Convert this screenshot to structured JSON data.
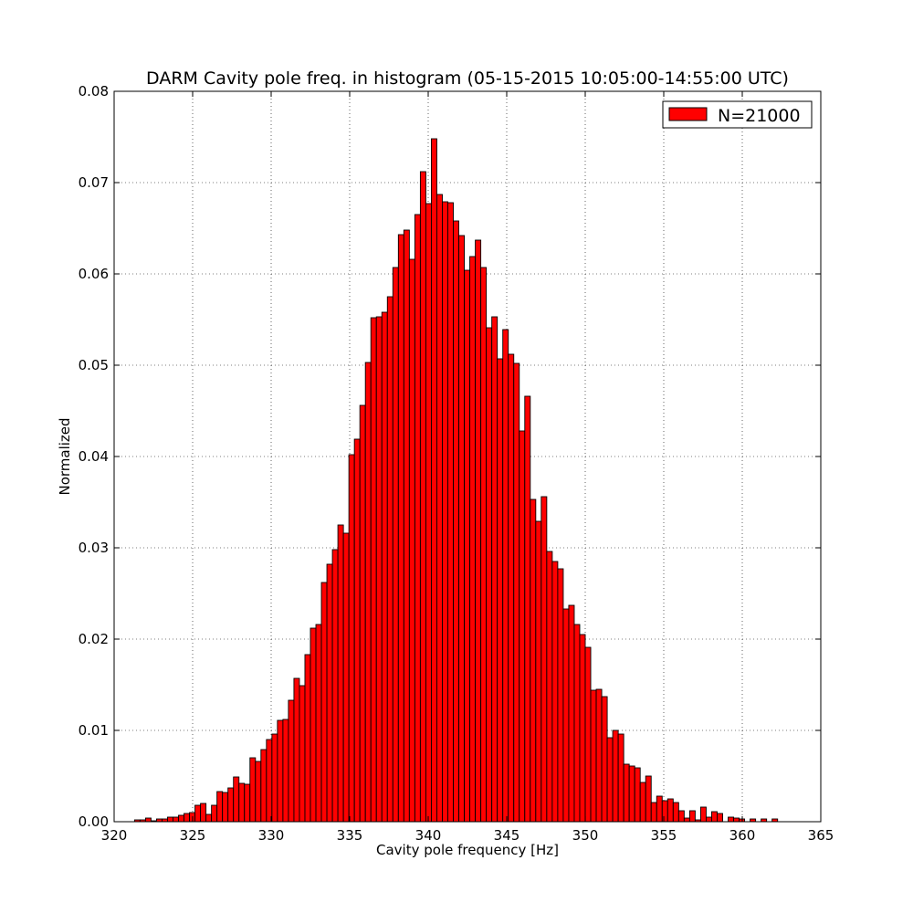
{
  "chart_data": {
    "type": "bar",
    "title": "DARM Cavity pole freq. in histogram (05-15-2015 10:05:00-14:55:00 UTC)",
    "xlabel": "Cavity pole frequency [Hz]",
    "ylabel": "Normalized",
    "xlim": [
      320,
      365
    ],
    "ylim": [
      0,
      0.08
    ],
    "xticks": [
      320,
      325,
      330,
      335,
      340,
      345,
      350,
      355,
      360,
      365
    ],
    "yticks": [
      0.0,
      0.01,
      0.02,
      0.03,
      0.04,
      0.05,
      0.06,
      0.07,
      0.08
    ],
    "xtick_labels": [
      "320",
      "325",
      "330",
      "335",
      "340",
      "345",
      "350",
      "355",
      "360",
      "365"
    ],
    "ytick_labels": [
      "0.00",
      "0.01",
      "0.02",
      "0.03",
      "0.04",
      "0.05",
      "0.06",
      "0.07",
      "0.08"
    ],
    "grid": true,
    "legend_position": "top-right",
    "bin_start": 321.3,
    "bin_width": 0.35,
    "series": [
      {
        "name": "N=21000",
        "color": "#ff0000",
        "values": [
          0.0002,
          0.0002,
          0.0004,
          0.0001,
          0.0003,
          0.0003,
          0.0005,
          0.0005,
          0.0007,
          0.0009,
          0.001,
          0.0018,
          0.002,
          0.0008,
          0.0018,
          0.0033,
          0.0032,
          0.0037,
          0.0049,
          0.0042,
          0.0041,
          0.007,
          0.0066,
          0.0079,
          0.009,
          0.0096,
          0.0111,
          0.0112,
          0.0133,
          0.0157,
          0.0149,
          0.0183,
          0.0212,
          0.0216,
          0.0262,
          0.0282,
          0.0298,
          0.0325,
          0.0316,
          0.0402,
          0.0419,
          0.0456,
          0.0503,
          0.0552,
          0.0553,
          0.0558,
          0.0575,
          0.0607,
          0.0643,
          0.0648,
          0.0616,
          0.0665,
          0.0712,
          0.0677,
          0.0748,
          0.0687,
          0.0679,
          0.0678,
          0.0658,
          0.0642,
          0.0604,
          0.0619,
          0.0637,
          0.0607,
          0.0541,
          0.0553,
          0.0507,
          0.0539,
          0.0512,
          0.0502,
          0.0428,
          0.0466,
          0.0353,
          0.0329,
          0.0356,
          0.0296,
          0.0285,
          0.0277,
          0.0233,
          0.0237,
          0.0216,
          0.0205,
          0.0191,
          0.0144,
          0.0145,
          0.0137,
          0.0092,
          0.01,
          0.0096,
          0.0063,
          0.0061,
          0.0059,
          0.0043,
          0.005,
          0.0021,
          0.0028,
          0.0023,
          0.0025,
          0.0021,
          0.0012,
          0.0004,
          0.0012,
          0.0002,
          0.0016,
          0.0005,
          0.0011,
          0.0009,
          0.0,
          0.0005,
          0.0004,
          0.0003,
          0.0,
          0.0003,
          0.0,
          0.0003,
          0.0,
          0.0003
        ]
      }
    ]
  }
}
